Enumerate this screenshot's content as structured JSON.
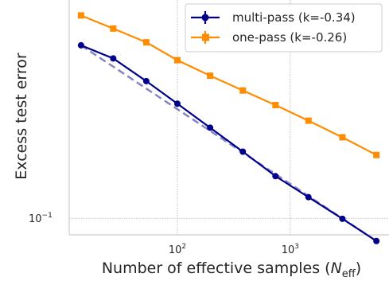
{
  "chart_data": {
    "type": "line",
    "title": "",
    "xlabel": "Number of effective samples (",
    "xlabel_symbol": "N",
    "xlabel_subscript": "eff",
    "xlabel_close": ")",
    "ylabel": "Excess test error",
    "xscale": "log",
    "yscale": "log",
    "xlim": [
      11,
      7500
    ],
    "ylim": [
      0.084,
      1.0
    ],
    "grid": true,
    "legend_position": "top-right",
    "x_ticks": [
      {
        "value": 100,
        "base": "10",
        "exp": "2"
      },
      {
        "value": 1000,
        "base": "10",
        "exp": "3"
      }
    ],
    "y_ticks": [
      {
        "value": 0.1,
        "base": "10",
        "exp": "−1"
      }
    ],
    "series": [
      {
        "name": "multi-pass (k=-0.34)",
        "color": "#00008b",
        "marker": "circle",
        "x": [
          14,
          27,
          53,
          100,
          195,
          380,
          740,
          1450,
          2900,
          5800
        ],
        "y": [
          0.62,
          0.54,
          0.425,
          0.335,
          0.26,
          0.202,
          0.156,
          0.125,
          0.0995,
          0.0787
        ]
      },
      {
        "name": "one-pass (k=-0.26)",
        "color": "#ff8c00",
        "marker": "square",
        "x": [
          14,
          27,
          53,
          100,
          195,
          380,
          740,
          1450,
          2900,
          5800
        ],
        "y": [
          0.85,
          0.74,
          0.64,
          0.53,
          0.45,
          0.385,
          0.33,
          0.28,
          0.235,
          0.195
        ]
      }
    ],
    "fit_lines": [
      {
        "series": "multi-pass (k=-0.34)",
        "color": "#7777bb",
        "style": "dashed",
        "x": [
          14,
          5800
        ],
        "y": [
          0.62,
          0.0787
        ]
      }
    ]
  }
}
